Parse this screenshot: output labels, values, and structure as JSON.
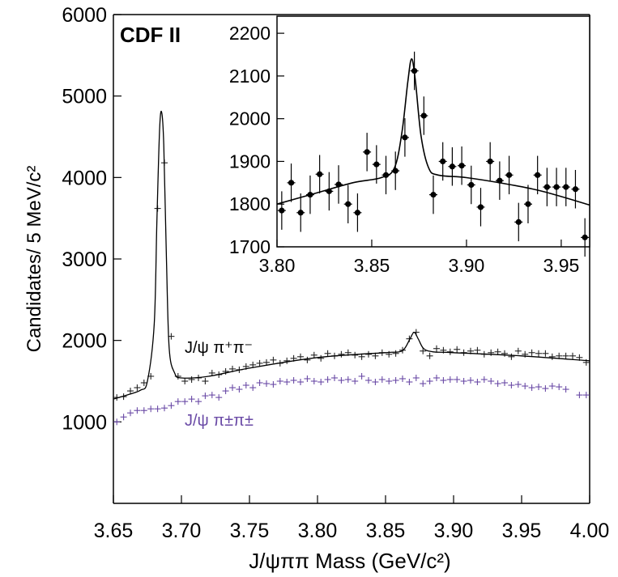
{
  "chart_data": [
    {
      "type": "scatter",
      "title": "CDF II",
      "xlabel": "J/ψππ Mass  (GeV/c²)",
      "ylabel": "Candidates/ 5 MeV/c²",
      "xlim": [
        3.65,
        4.0
      ],
      "ylim": [
        0,
        6000
      ],
      "xticks": [
        "3.65",
        "3.70",
        "3.75",
        "3.80",
        "3.85",
        "3.90",
        "3.95",
        "4.00"
      ],
      "yticks": [
        "1000",
        "2000",
        "3000",
        "4000",
        "5000",
        "6000"
      ],
      "grid": false,
      "colors": {
        "opposite_sign": "#222222",
        "same_sign": "#6a4aa6"
      },
      "series": [
        {
          "name": "J/ψ π⁺π⁻",
          "x": [
            3.6525,
            3.6575,
            3.6625,
            3.6675,
            3.6725,
            3.6775,
            3.6825,
            3.6875,
            3.6925,
            3.6975,
            3.7025,
            3.7075,
            3.7125,
            3.7175,
            3.7225,
            3.7275,
            3.7325,
            3.7375,
            3.7425,
            3.7475,
            3.7525,
            3.7575,
            3.7625,
            3.7675,
            3.7725,
            3.7775,
            3.7825,
            3.7875,
            3.7925,
            3.7975,
            3.8025,
            3.8075,
            3.8125,
            3.8175,
            3.8225,
            3.8275,
            3.8325,
            3.8375,
            3.8425,
            3.8475,
            3.8525,
            3.8575,
            3.8625,
            3.8675,
            3.8725,
            3.8775,
            3.8825,
            3.8875,
            3.8925,
            3.8975,
            3.9025,
            3.9075,
            3.9125,
            3.9175,
            3.9225,
            3.9275,
            3.9325,
            3.9375,
            3.9425,
            3.9475,
            3.9525,
            3.9575,
            3.9625,
            3.9675,
            3.9725,
            3.9775,
            3.9825,
            3.9875,
            3.9925,
            3.9975
          ],
          "y": [
            1300,
            1310,
            1380,
            1420,
            1480,
            1560,
            3620,
            4180,
            2050,
            1560,
            1500,
            1520,
            1540,
            1500,
            1600,
            1580,
            1620,
            1650,
            1640,
            1680,
            1700,
            1720,
            1730,
            1760,
            1720,
            1750,
            1780,
            1800,
            1760,
            1820,
            1780,
            1840,
            1810,
            1830,
            1850,
            1820,
            1800,
            1830,
            1810,
            1850,
            1830,
            1840,
            1880,
            2020,
            2100,
            1870,
            1810,
            1900,
            1880,
            1860,
            1890,
            1850,
            1870,
            1880,
            1830,
            1850,
            1860,
            1840,
            1800,
            1870,
            1830,
            1850,
            1840,
            1840,
            1800,
            1810,
            1810,
            1810,
            1790,
            1730
          ]
        },
        {
          "name": "J/ψ π±π±",
          "x": [
            3.6525,
            3.6575,
            3.6625,
            3.6675,
            3.6725,
            3.6775,
            3.6825,
            3.6875,
            3.6925,
            3.6975,
            3.7025,
            3.7075,
            3.7125,
            3.7175,
            3.7225,
            3.7275,
            3.7325,
            3.7375,
            3.7425,
            3.7475,
            3.7525,
            3.7575,
            3.7625,
            3.7675,
            3.7725,
            3.7775,
            3.7825,
            3.7875,
            3.7925,
            3.7975,
            3.8025,
            3.8075,
            3.8125,
            3.8175,
            3.8225,
            3.8275,
            3.8325,
            3.8375,
            3.8425,
            3.8475,
            3.8525,
            3.8575,
            3.8625,
            3.8675,
            3.8725,
            3.8775,
            3.8825,
            3.8875,
            3.8925,
            3.8975,
            3.9025,
            3.9075,
            3.9125,
            3.9175,
            3.9225,
            3.9275,
            3.9325,
            3.9375,
            3.9425,
            3.9475,
            3.9525,
            3.9575,
            3.9625,
            3.9675,
            3.9725,
            3.9775,
            3.9825,
            3.9925,
            3.9975
          ],
          "y": [
            1000,
            1060,
            1110,
            1140,
            1140,
            1160,
            1160,
            1170,
            1200,
            1250,
            1250,
            1280,
            1250,
            1320,
            1330,
            1300,
            1380,
            1420,
            1400,
            1450,
            1420,
            1480,
            1470,
            1460,
            1500,
            1490,
            1510,
            1490,
            1530,
            1500,
            1490,
            1520,
            1540,
            1510,
            1520,
            1500,
            1560,
            1510,
            1490,
            1520,
            1500,
            1510,
            1530,
            1490,
            1540,
            1470,
            1500,
            1540,
            1510,
            1520,
            1520,
            1500,
            1510,
            1490,
            1520,
            1500,
            1470,
            1480,
            1450,
            1460,
            1440,
            1420,
            1430,
            1410,
            1440,
            1430,
            1400,
            1330,
            1330
          ]
        }
      ],
      "fit_curve": {
        "x": [
          3.65,
          3.66,
          3.67,
          3.675,
          3.68,
          3.682,
          3.684,
          3.6855,
          3.687,
          3.689,
          3.691,
          3.695,
          3.7,
          3.72,
          3.75,
          3.8,
          3.85,
          3.86,
          3.864,
          3.868,
          3.871,
          3.874,
          3.878,
          3.885,
          3.9,
          3.95,
          4.0
        ],
        "y": [
          1280,
          1330,
          1390,
          1500,
          2200,
          3500,
          4600,
          4800,
          4400,
          3000,
          1900,
          1600,
          1540,
          1560,
          1660,
          1790,
          1850,
          1860,
          1900,
          2020,
          2100,
          2020,
          1900,
          1860,
          1850,
          1810,
          1750
        ]
      },
      "annotations": [
        "J/ψ π⁺π⁻",
        "J/ψ π±π±"
      ]
    },
    {
      "type": "scatter",
      "xlim": [
        3.8,
        3.965
      ],
      "ylim": [
        1700,
        2240
      ],
      "xticks": [
        "3.80",
        "3.85",
        "3.90",
        "3.95"
      ],
      "yticks": [
        "1700",
        "1800",
        "1900",
        "2000",
        "2100",
        "2200"
      ],
      "grid": false,
      "series": [
        {
          "x": [
            3.8025,
            3.8075,
            3.8125,
            3.8175,
            3.8225,
            3.8275,
            3.8325,
            3.8375,
            3.8425,
            3.8475,
            3.8525,
            3.8575,
            3.8625,
            3.8675,
            3.8725,
            3.8775,
            3.8825,
            3.8875,
            3.8925,
            3.8975,
            3.9025,
            3.9075,
            3.9125,
            3.9175,
            3.9225,
            3.9275,
            3.9325,
            3.9375,
            3.9425,
            3.9475,
            3.9525,
            3.9575,
            3.9625
          ],
          "y": [
            1785,
            1850,
            1780,
            1822,
            1870,
            1830,
            1846,
            1800,
            1780,
            1922,
            1893,
            1868,
            1878,
            1956,
            2112,
            2007,
            1822,
            1900,
            1888,
            1890,
            1845,
            1793,
            1900,
            1855,
            1868,
            1758,
            1800,
            1868,
            1840,
            1840,
            1840,
            1835,
            1722
          ],
          "yerr": [
            45,
            45,
            45,
            45,
            45,
            45,
            45,
            45,
            45,
            45,
            45,
            45,
            45,
            45,
            45,
            45,
            45,
            45,
            45,
            45,
            45,
            45,
            45,
            45,
            45,
            45,
            45,
            45,
            45,
            45,
            45,
            45,
            45
          ]
        }
      ],
      "fit_curve": {
        "x": [
          3.8,
          3.82,
          3.84,
          3.855,
          3.862,
          3.866,
          3.869,
          3.871,
          3.873,
          3.876,
          3.88,
          3.885,
          3.9,
          3.92,
          3.94,
          3.965
        ],
        "y": [
          1800,
          1825,
          1850,
          1862,
          1885,
          1970,
          2085,
          2140,
          2090,
          1960,
          1885,
          1868,
          1862,
          1848,
          1830,
          1798
        ]
      }
    }
  ]
}
